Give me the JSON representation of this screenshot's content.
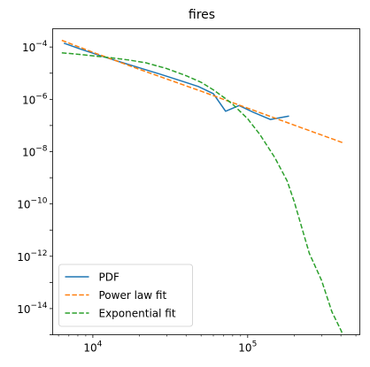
{
  "chart_data": {
    "type": "line",
    "title": "fires",
    "xscale": "log",
    "yscale": "log",
    "xlim": [
      5500,
      530000
    ],
    "ylim": [
      1e-15,
      0.0005
    ],
    "grid": false,
    "legend_position": "lower-left",
    "x_ticks": [
      {
        "value": 10000,
        "base": "10",
        "exp": "4"
      },
      {
        "value": 100000,
        "base": "10",
        "exp": "5"
      }
    ],
    "y_ticks": [
      {
        "value": 0.0001,
        "base": "10",
        "exp": "−4"
      },
      {
        "value": 1e-06,
        "base": "10",
        "exp": "−6"
      },
      {
        "value": 1e-08,
        "base": "10",
        "exp": "−8"
      },
      {
        "value": 1e-10,
        "base": "10",
        "exp": "−10"
      },
      {
        "value": 1e-12,
        "base": "10",
        "exp": "−12"
      },
      {
        "value": 1e-14,
        "base": "10",
        "exp": "−14"
      }
    ],
    "series": [
      {
        "name": "PDF",
        "color": "#1f77b4",
        "dash": "solid",
        "x": [
          6500,
          8500,
          11000,
          15000,
          20000,
          27000,
          36000,
          48000,
          60000,
          72000,
          88000,
          110000,
          140000,
          185000
        ],
        "y": [
          0.00014,
          8e-05,
          4.8e-05,
          2.7e-05,
          1.6e-05,
          9.3e-06,
          5.4e-06,
          3.1e-06,
          1.65e-06,
          3.5e-07,
          5.8e-07,
          3.1e-07,
          1.7e-07,
          2.3e-07
        ]
      },
      {
        "name": "Power law fit",
        "color": "#ff7f0e",
        "dash": "dashed",
        "x": [
          6300,
          10000,
          20000,
          50000,
          100000,
          200000,
          420000
        ],
        "y": [
          0.00018,
          6.3e-05,
          1.4e-05,
          2.05e-06,
          4.6e-07,
          1.03e-07,
          2.1e-08
        ]
      },
      {
        "name": "Exponential fit",
        "color": "#2ca02c",
        "dash": "dashed",
        "x": [
          6300,
          8000,
          10000,
          13000,
          17000,
          22000,
          30000,
          40000,
          50000,
          60000,
          70000,
          80000,
          100000,
          120000,
          150000,
          180000,
          200000,
          250000,
          300000,
          350000,
          400000,
          420000
        ],
        "y": [
          6e-05,
          5.3e-05,
          4.6e-05,
          3.9e-05,
          3.2e-05,
          2.5e-05,
          1.5e-05,
          8e-06,
          4.5e-06,
          2.3e-06,
          1.2e-06,
          6.5e-07,
          1.8e-07,
          4.5e-08,
          5.8e-09,
          7.5e-10,
          1.2e-10,
          1.3e-12,
          1.2e-13,
          7.5e-15,
          1.5e-15,
          7.5e-16
        ]
      }
    ]
  }
}
